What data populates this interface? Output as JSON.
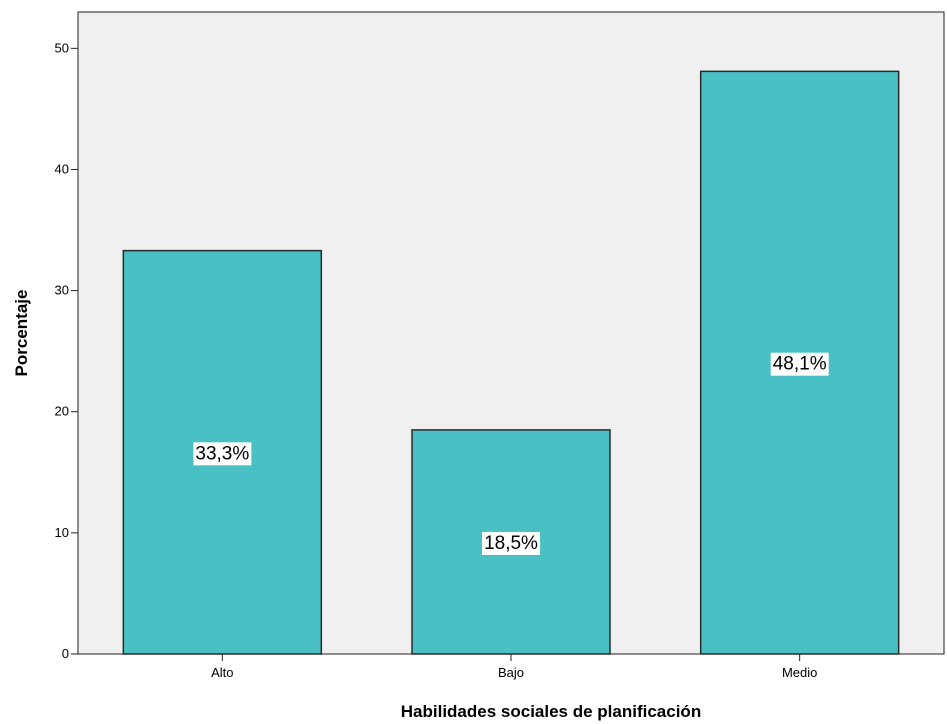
{
  "chart_data": {
    "type": "bar",
    "title": "",
    "xlabel": "Habilidades sociales de planificación",
    "ylabel": "Porcentaje",
    "categories": [
      "Alto",
      "Bajo",
      "Medio"
    ],
    "values": [
      33.3,
      18.5,
      48.1
    ],
    "data_labels": [
      "33,3%",
      "18,5%",
      "48,1%"
    ],
    "ylim": [
      0,
      53
    ],
    "yticks": [
      0,
      10,
      20,
      30,
      40,
      50
    ],
    "grid": false,
    "legend": "none",
    "colors": {
      "bar_fill": "#48C0C4",
      "bar_stroke": "#2a2a2a",
      "plot_background": "#F0F0F0",
      "label_box": "#FFFFFF"
    }
  }
}
